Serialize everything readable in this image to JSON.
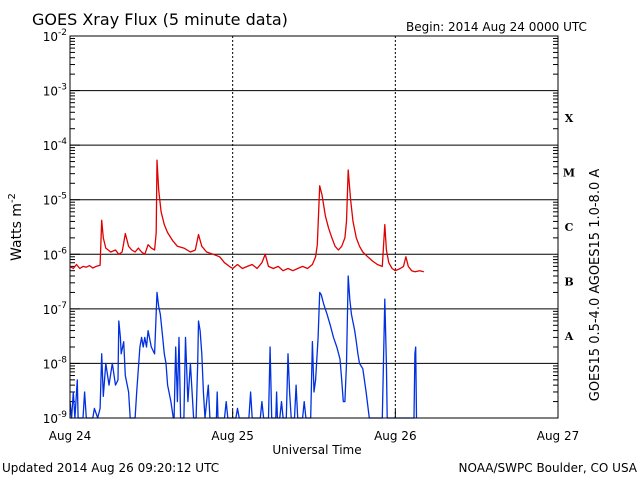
{
  "chart_data": {
    "type": "line",
    "title": "GOES Xray Flux (5 minute data)",
    "begin_label": "Begin:  2014 Aug 24 0000 UTC",
    "xlabel": "Universal Time",
    "ylabel_base": "Watts m",
    "ylabel_exp": "-2",
    "yscale": "log",
    "ylim": [
      1e-09,
      0.01
    ],
    "xlim": [
      0,
      3
    ],
    "grid": true,
    "y_ticks": [
      {
        "base": "10",
        "exp": "-2",
        "value": 0.01
      },
      {
        "base": "10",
        "exp": "-3",
        "value": 0.001
      },
      {
        "base": "10",
        "exp": "-4",
        "value": 0.0001
      },
      {
        "base": "10",
        "exp": "-5",
        "value": 1e-05
      },
      {
        "base": "10",
        "exp": "-6",
        "value": 1e-06
      },
      {
        "base": "10",
        "exp": "-7",
        "value": 1e-07
      },
      {
        "base": "10",
        "exp": "-8",
        "value": 1e-08
      },
      {
        "base": "10",
        "exp": "-9",
        "value": 1e-09
      }
    ],
    "x_ticks": [
      {
        "label": "Aug 24",
        "value": 0
      },
      {
        "label": "Aug 25",
        "value": 1
      },
      {
        "label": "Aug 26",
        "value": 2
      },
      {
        "label": "Aug 27",
        "value": 3
      }
    ],
    "flare_classes": [
      {
        "label": "X",
        "value": 0.000316
      },
      {
        "label": "M",
        "value": 3.16e-05
      },
      {
        "label": "C",
        "value": 3.16e-06
      },
      {
        "label": "B",
        "value": 3.16e-07
      },
      {
        "label": "A",
        "value": 3.16e-08
      }
    ],
    "series": [
      {
        "name": "GOES15 1.0-8.0 A",
        "color": "#e00000",
        "points": [
          [
            0.0,
            6e-07
          ],
          [
            0.02,
            5.5e-07
          ],
          [
            0.04,
            6.5e-07
          ],
          [
            0.06,
            5.5e-07
          ],
          [
            0.08,
            6e-07
          ],
          [
            0.1,
            5.8e-07
          ],
          [
            0.12,
            6.2e-07
          ],
          [
            0.14,
            5.6e-07
          ],
          [
            0.16,
            6e-07
          ],
          [
            0.185,
            6.3e-07
          ],
          [
            0.195,
            4.2e-06
          ],
          [
            0.205,
            2e-06
          ],
          [
            0.22,
            1.3e-06
          ],
          [
            0.25,
            1.1e-06
          ],
          [
            0.28,
            1.2e-06
          ],
          [
            0.3,
            1e-06
          ],
          [
            0.32,
            1.1e-06
          ],
          [
            0.33,
            1.6e-06
          ],
          [
            0.34,
            2.4e-06
          ],
          [
            0.36,
            1.4e-06
          ],
          [
            0.38,
            1.2e-06
          ],
          [
            0.4,
            1.1e-06
          ],
          [
            0.42,
            1.3e-06
          ],
          [
            0.44,
            1.1e-06
          ],
          [
            0.46,
            1e-06
          ],
          [
            0.48,
            1.5e-06
          ],
          [
            0.5,
            1.3e-06
          ],
          [
            0.52,
            1.2e-06
          ],
          [
            0.53,
            2.5e-06
          ],
          [
            0.535,
            5.3e-05
          ],
          [
            0.545,
            1.5e-05
          ],
          [
            0.56,
            6e-06
          ],
          [
            0.58,
            3.5e-06
          ],
          [
            0.6,
            2.5e-06
          ],
          [
            0.63,
            1.8e-06
          ],
          [
            0.66,
            1.4e-06
          ],
          [
            0.7,
            1.3e-06
          ],
          [
            0.74,
            1.1e-06
          ],
          [
            0.77,
            1.2e-06
          ],
          [
            0.79,
            2.3e-06
          ],
          [
            0.81,
            1.4e-06
          ],
          [
            0.84,
            1.1e-06
          ],
          [
            0.88,
            1e-06
          ],
          [
            0.92,
            9e-07
          ],
          [
            0.95,
            7e-07
          ],
          [
            0.98,
            6e-07
          ],
          [
            1.0,
            5.5e-07
          ],
          [
            1.03,
            6.5e-07
          ],
          [
            1.06,
            5.5e-07
          ],
          [
            1.09,
            6e-07
          ],
          [
            1.12,
            6.5e-07
          ],
          [
            1.15,
            5.5e-07
          ],
          [
            1.18,
            7e-07
          ],
          [
            1.2,
            1e-06
          ],
          [
            1.22,
            6e-07
          ],
          [
            1.25,
            5.5e-07
          ],
          [
            1.28,
            6e-07
          ],
          [
            1.31,
            5e-07
          ],
          [
            1.34,
            5.5e-07
          ],
          [
            1.37,
            5e-07
          ],
          [
            1.4,
            5.5e-07
          ],
          [
            1.43,
            6e-07
          ],
          [
            1.46,
            5.5e-07
          ],
          [
            1.49,
            6.5e-07
          ],
          [
            1.51,
            9e-07
          ],
          [
            1.52,
            1.5e-06
          ],
          [
            1.535,
            1.8e-05
          ],
          [
            1.55,
            1.2e-05
          ],
          [
            1.57,
            5e-06
          ],
          [
            1.59,
            3e-06
          ],
          [
            1.61,
            2e-06
          ],
          [
            1.63,
            1.4e-06
          ],
          [
            1.65,
            1.2e-06
          ],
          [
            1.67,
            1.4e-06
          ],
          [
            1.69,
            2e-06
          ],
          [
            1.7,
            4e-06
          ],
          [
            1.71,
            3.5e-05
          ],
          [
            1.725,
            1e-05
          ],
          [
            1.74,
            4e-06
          ],
          [
            1.76,
            2e-06
          ],
          [
            1.78,
            1.4e-06
          ],
          [
            1.8,
            1.1e-06
          ],
          [
            1.83,
            9e-07
          ],
          [
            1.86,
            7.5e-07
          ],
          [
            1.89,
            6.5e-07
          ],
          [
            1.92,
            6e-07
          ],
          [
            1.935,
            3.5e-06
          ],
          [
            1.945,
            1.2e-06
          ],
          [
            1.96,
            7e-07
          ],
          [
            1.98,
            5.5e-07
          ],
          [
            2.0,
            5e-07
          ],
          [
            2.03,
            5.5e-07
          ],
          [
            2.05,
            6e-07
          ],
          [
            2.065,
            9e-07
          ],
          [
            2.08,
            6e-07
          ],
          [
            2.1,
            5e-07
          ],
          [
            2.12,
            4.8e-07
          ],
          [
            2.15,
            5e-07
          ],
          [
            2.175,
            4.8e-07
          ]
        ]
      },
      {
        "name": "GOES15 0.5-4.0 A",
        "color": "#0030e0",
        "points": [
          [
            0.0,
            2e-09
          ],
          [
            0.01,
            1e-09
          ],
          [
            0.02,
            3e-09
          ],
          [
            0.03,
            1e-09
          ],
          [
            0.045,
            5e-09
          ],
          [
            0.05,
            1e-09
          ],
          [
            0.08,
            1e-09
          ],
          [
            0.09,
            3e-09
          ],
          [
            0.1,
            1e-09
          ],
          [
            0.14,
            1e-09
          ],
          [
            0.15,
            1.5e-09
          ],
          [
            0.17,
            1e-09
          ],
          [
            0.185,
            1.5e-09
          ],
          [
            0.195,
            1.5e-08
          ],
          [
            0.205,
            2.5e-09
          ],
          [
            0.22,
            1e-08
          ],
          [
            0.24,
            4e-09
          ],
          [
            0.26,
            1e-08
          ],
          [
            0.28,
            4e-09
          ],
          [
            0.295,
            5e-09
          ],
          [
            0.3,
            6e-08
          ],
          [
            0.31,
            3e-08
          ],
          [
            0.315,
            1.5e-08
          ],
          [
            0.33,
            2.5e-08
          ],
          [
            0.34,
            6e-09
          ],
          [
            0.36,
            3e-09
          ],
          [
            0.37,
            1e-09
          ],
          [
            0.4,
            1e-09
          ],
          [
            0.41,
            3e-09
          ],
          [
            0.43,
            2e-08
          ],
          [
            0.44,
            3e-08
          ],
          [
            0.45,
            2e-08
          ],
          [
            0.46,
            3e-08
          ],
          [
            0.47,
            2e-08
          ],
          [
            0.48,
            4e-08
          ],
          [
            0.5,
            2e-08
          ],
          [
            0.52,
            1.5e-08
          ],
          [
            0.535,
            2e-07
          ],
          [
            0.545,
            1.1e-07
          ],
          [
            0.555,
            8e-08
          ],
          [
            0.57,
            3e-08
          ],
          [
            0.58,
            1.5e-08
          ],
          [
            0.59,
            1e-08
          ],
          [
            0.6,
            4e-09
          ],
          [
            0.62,
            2e-09
          ],
          [
            0.635,
            1e-09
          ],
          [
            0.64,
            1e-09
          ],
          [
            0.65,
            2e-08
          ],
          [
            0.66,
            2e-09
          ],
          [
            0.67,
            3e-08
          ],
          [
            0.68,
            1e-09
          ],
          [
            0.7,
            1e-09
          ],
          [
            0.71,
            3e-08
          ],
          [
            0.725,
            2e-09
          ],
          [
            0.74,
            1e-08
          ],
          [
            0.76,
            1e-09
          ],
          [
            0.775,
            1e-09
          ],
          [
            0.785,
            1e-08
          ],
          [
            0.79,
            6e-08
          ],
          [
            0.8,
            4e-08
          ],
          [
            0.81,
            1.5e-08
          ],
          [
            0.82,
            3e-09
          ],
          [
            0.83,
            1e-09
          ],
          [
            0.85,
            4e-09
          ],
          [
            0.86,
            1e-09
          ],
          [
            0.9,
            1e-09
          ],
          [
            0.905,
            3e-09
          ],
          [
            0.91,
            1e-09
          ],
          [
            0.95,
            1e-09
          ],
          [
            0.96,
            2e-09
          ],
          [
            0.97,
            1e-09
          ],
          [
            1.0,
            1e-09
          ],
          [
            1.02,
            1e-09
          ],
          [
            1.03,
            1.5e-09
          ],
          [
            1.04,
            1e-09
          ],
          [
            1.1,
            1e-09
          ],
          [
            1.11,
            3e-09
          ],
          [
            1.12,
            1e-09
          ],
          [
            1.17,
            1e-09
          ],
          [
            1.18,
            2e-09
          ],
          [
            1.19,
            1e-09
          ],
          [
            1.22,
            1e-09
          ],
          [
            1.23,
            2e-08
          ],
          [
            1.24,
            1e-09
          ],
          [
            1.265,
            1e-09
          ],
          [
            1.27,
            3e-09
          ],
          [
            1.275,
            1e-09
          ],
          [
            1.29,
            1e-09
          ],
          [
            1.3,
            2e-09
          ],
          [
            1.31,
            1e-09
          ],
          [
            1.33,
            1e-09
          ],
          [
            1.34,
            1.5e-08
          ],
          [
            1.35,
            3e-09
          ],
          [
            1.36,
            1e-09
          ],
          [
            1.38,
            1e-09
          ],
          [
            1.39,
            4e-09
          ],
          [
            1.4,
            1e-09
          ],
          [
            1.43,
            1e-09
          ],
          [
            1.44,
            2e-09
          ],
          [
            1.45,
            1e-09
          ],
          [
            1.48,
            1e-09
          ],
          [
            1.49,
            2.5e-08
          ],
          [
            1.5,
            3e-09
          ],
          [
            1.51,
            5e-09
          ],
          [
            1.525,
            3e-08
          ],
          [
            1.535,
            2e-07
          ],
          [
            1.545,
            1.8e-07
          ],
          [
            1.56,
            1.2e-07
          ],
          [
            1.58,
            8e-08
          ],
          [
            1.6,
            5e-08
          ],
          [
            1.62,
            3e-08
          ],
          [
            1.64,
            2e-08
          ],
          [
            1.66,
            1.2e-08
          ],
          [
            1.67,
            5e-09
          ],
          [
            1.68,
            2e-09
          ],
          [
            1.69,
            2e-09
          ],
          [
            1.7,
            1e-08
          ],
          [
            1.71,
            4e-07
          ],
          [
            1.72,
            1.5e-07
          ],
          [
            1.73,
            8e-08
          ],
          [
            1.75,
            4e-08
          ],
          [
            1.76,
            2.5e-08
          ],
          [
            1.77,
            1.5e-08
          ],
          [
            1.78,
            1e-08
          ],
          [
            1.8,
            8e-09
          ],
          [
            1.82,
            3e-09
          ],
          [
            1.84,
            1e-09
          ],
          [
            1.9,
            1e-09
          ],
          [
            1.92,
            1e-09
          ],
          [
            1.935,
            1.5e-07
          ],
          [
            1.945,
            1e-08
          ],
          [
            1.95,
            1e-09
          ],
          [
            2.1,
            1e-09
          ],
          [
            2.115,
            1e-09
          ],
          [
            2.12,
            1.5e-08
          ],
          [
            2.125,
            2e-08
          ],
          [
            2.13,
            1e-09
          ]
        ]
      }
    ],
    "footer_left": "Updated 2014 Aug 26 09:20:12 UTC",
    "footer_right": "NOAA/SWPC Boulder, CO USA"
  }
}
